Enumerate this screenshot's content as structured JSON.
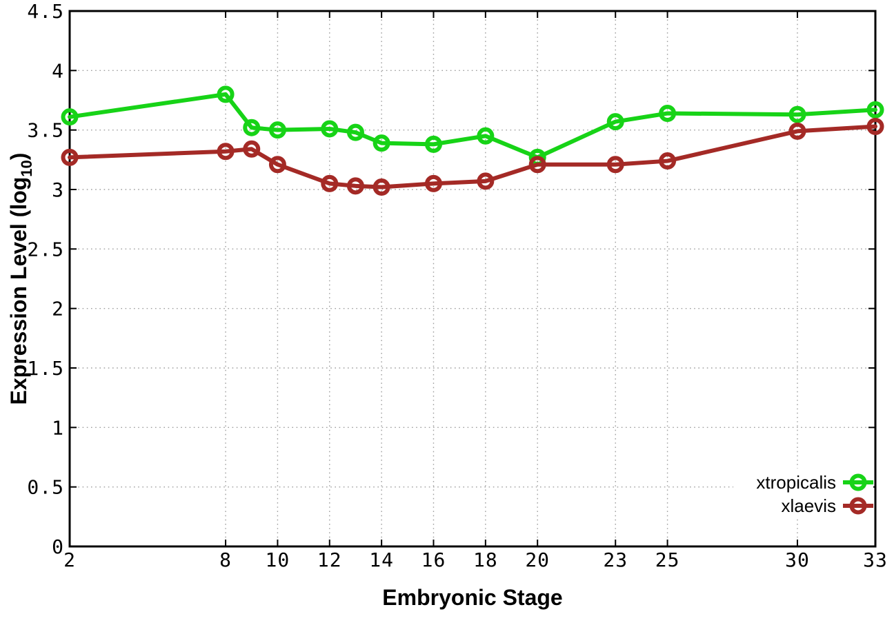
{
  "chart_data": {
    "type": "line",
    "title": "",
    "xlabel": "Embryonic Stage",
    "ylabel": "Expression Level (log10)",
    "ylabel_parts": [
      "Expression Level (log",
      "10",
      ")"
    ],
    "x": [
      2,
      8,
      9,
      10,
      12,
      13,
      14,
      16,
      18,
      20,
      23,
      25,
      30,
      33
    ],
    "series": [
      {
        "name": "xtropicalis",
        "color": "#17d317",
        "values": [
          3.61,
          3.8,
          3.52,
          3.5,
          3.51,
          3.48,
          3.39,
          3.38,
          3.45,
          3.27,
          3.57,
          3.64,
          3.63,
          3.67
        ]
      },
      {
        "name": "xlaevis",
        "color": "#a42a26",
        "values": [
          3.27,
          3.32,
          3.34,
          3.21,
          3.05,
          3.03,
          3.02,
          3.05,
          3.07,
          3.21,
          3.21,
          3.24,
          3.49,
          3.53
        ]
      }
    ],
    "marker": "open-circle",
    "xlim": [
      2,
      33
    ],
    "ylim": [
      0,
      4.5
    ],
    "xticks": [
      2,
      8,
      10,
      12,
      14,
      16,
      18,
      20,
      23,
      25,
      30,
      33
    ],
    "xtick_labels": [
      "2",
      "8",
      "10",
      "12",
      "14",
      "16",
      "18",
      "20",
      "23",
      "25",
      "30",
      "33"
    ],
    "yticks": [
      0,
      0.5,
      1,
      1.5,
      2,
      2.5,
      3,
      3.5,
      4,
      4.5
    ],
    "ytick_labels": [
      "0",
      "0.5",
      "1",
      "1.5",
      "2",
      "2.5",
      "3",
      "3.5",
      "4",
      "4.5"
    ],
    "grid": true,
    "legend_position": "inside-bottom-right",
    "colors": {
      "background": "#ffffff",
      "grid": "#9e9e9e",
      "axis": "#000000"
    }
  }
}
